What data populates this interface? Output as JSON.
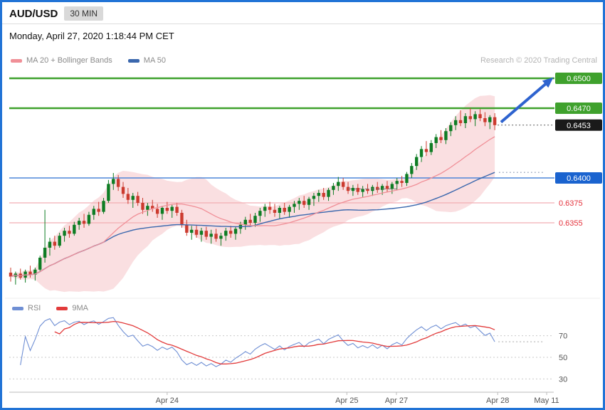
{
  "header": {
    "pair": "AUD/USD",
    "timeframe_badge": "30 MIN"
  },
  "timestamp": "Monday, April 27, 2020 1:18:44 PM CET",
  "legend": {
    "bollinger_label": "MA 20 + Bollinger Bands",
    "ma50_label": "MA 50"
  },
  "attribution": "Research © 2020 Trading Central",
  "rsi_legend": {
    "rsi_label": "RSI",
    "ma_label": "9MA"
  },
  "colors": {
    "frame": "#2173d6",
    "ma20": "#f08f97",
    "bollinger_fill": "#f6c4c9",
    "ma50": "#3a67ad",
    "candle_up": "#0e7d24",
    "candle_down": "#cc3b2f",
    "level_green": "#3fa12d",
    "level_blue_line": "#4f86d8",
    "level_blue_badge": "#1a63cf",
    "level_red_line": "#f2aeb4",
    "level_red_text": "#e4323c",
    "last_price_badge": "#1a1a1a",
    "arrow": "#2e63cf",
    "rsi": "#6f8fd4",
    "rsi_ma": "#e23b3b"
  },
  "chart_data": [
    {
      "type": "candlestick",
      "title": "AUD/USD 30 MIN",
      "ylim": [
        0.629,
        0.6505
      ],
      "last_price": 0.6453,
      "x_labels": [
        {
          "text": "Apr 24",
          "f": 0.29
        },
        {
          "text": "Apr 25",
          "f": 0.62
        },
        {
          "text": "Apr 27",
          "f": 0.711
        },
        {
          "text": "Apr 28",
          "f": 0.897
        },
        {
          "text": "May 11",
          "f": 0.987
        }
      ],
      "levels": [
        {
          "price": 0.65,
          "label": "0.6500",
          "role": "resistance",
          "line_color": "#3fa12d",
          "badge_color": "#3fa12d",
          "label_style": "badge",
          "width": 2.4
        },
        {
          "price": 0.647,
          "label": "0.6470",
          "role": "resistance",
          "line_color": "#3fa12d",
          "badge_color": "#3fa12d",
          "label_style": "badge",
          "width": 2.4
        },
        {
          "price": 0.6453,
          "label": "0.6453",
          "role": "last-price",
          "line_color": "#555555",
          "badge_color": "#1a1a1a",
          "label_style": "badge",
          "width": 1,
          "line": "dotted-short"
        },
        {
          "price": 0.64,
          "label": "0.6400",
          "role": "pivot",
          "line_color": "#4f86d8",
          "badge_color": "#1a63cf",
          "label_style": "badge",
          "width": 1.6
        },
        {
          "price": 0.6375,
          "label": "0.6375",
          "role": "support",
          "line_color": "#f2aeb4",
          "text_color": "#e4323c",
          "label_style": "text",
          "width": 1.2
        },
        {
          "price": 0.6355,
          "label": "0.6355",
          "role": "support",
          "line_color": "#f2aeb4",
          "text_color": "#e4323c",
          "label_style": "text",
          "width": 1.2
        }
      ],
      "overlays": [
        "MA 20",
        "Bollinger Bands (20,2)",
        "MA 50"
      ],
      "annotations": {
        "arrow_up": {
          "from_f": 0.902,
          "from_price": 0.6456,
          "to_f": 0.998,
          "to_price": 0.6501
        },
        "dashed_segment": {
          "price": 0.6389,
          "from": 69,
          "to": 79
        }
      },
      "candles": [
        [
          0.6305,
          0.631,
          0.6296,
          0.6301
        ],
        [
          0.6301,
          0.6306,
          0.6293,
          0.6304
        ],
        [
          0.6304,
          0.6309,
          0.6298,
          0.63
        ],
        [
          0.63,
          0.6308,
          0.6295,
          0.6306
        ],
        [
          0.6306,
          0.6312,
          0.63,
          0.6303
        ],
        [
          0.6303,
          0.631,
          0.6297,
          0.6308
        ],
        [
          0.6308,
          0.6322,
          0.6306,
          0.632
        ],
        [
          0.632,
          0.6368,
          0.6315,
          0.633
        ],
        [
          0.633,
          0.634,
          0.6322,
          0.6336
        ],
        [
          0.6336,
          0.6342,
          0.6328,
          0.6332
        ],
        [
          0.6332,
          0.6345,
          0.633,
          0.6342
        ],
        [
          0.6342,
          0.635,
          0.6336,
          0.6347
        ],
        [
          0.6347,
          0.6352,
          0.634,
          0.6344
        ],
        [
          0.6344,
          0.6356,
          0.6342,
          0.6353
        ],
        [
          0.6353,
          0.636,
          0.6348,
          0.6357
        ],
        [
          0.6357,
          0.6364,
          0.635,
          0.6354
        ],
        [
          0.6354,
          0.6366,
          0.6352,
          0.6363
        ],
        [
          0.6363,
          0.6372,
          0.6358,
          0.6369
        ],
        [
          0.6369,
          0.6376,
          0.6362,
          0.6366
        ],
        [
          0.6366,
          0.638,
          0.6364,
          0.6377
        ],
        [
          0.6377,
          0.6398,
          0.6375,
          0.6394
        ],
        [
          0.6394,
          0.6405,
          0.6388,
          0.6399
        ],
        [
          0.6399,
          0.6403,
          0.6387,
          0.6391
        ],
        [
          0.6391,
          0.6396,
          0.638,
          0.6384
        ],
        [
          0.6384,
          0.639,
          0.6374,
          0.6378
        ],
        [
          0.6378,
          0.6385,
          0.637,
          0.6382
        ],
        [
          0.6382,
          0.6386,
          0.6372,
          0.6375
        ],
        [
          0.6375,
          0.638,
          0.6364,
          0.6368
        ],
        [
          0.6368,
          0.6375,
          0.6362,
          0.6372
        ],
        [
          0.6372,
          0.6378,
          0.6366,
          0.6369
        ],
        [
          0.6369,
          0.6374,
          0.636,
          0.6364
        ],
        [
          0.6364,
          0.6372,
          0.6358,
          0.637
        ],
        [
          0.637,
          0.6376,
          0.6364,
          0.6367
        ],
        [
          0.6367,
          0.6373,
          0.636,
          0.6371
        ],
        [
          0.6371,
          0.6375,
          0.6362,
          0.6365
        ],
        [
          0.6365,
          0.6368,
          0.635,
          0.6353
        ],
        [
          0.6353,
          0.6358,
          0.6342,
          0.6345
        ],
        [
          0.6345,
          0.6352,
          0.6338,
          0.6348
        ],
        [
          0.6348,
          0.6353,
          0.634,
          0.6343
        ],
        [
          0.6343,
          0.635,
          0.6336,
          0.6347
        ],
        [
          0.6347,
          0.6351,
          0.6338,
          0.6341
        ],
        [
          0.6341,
          0.6348,
          0.6334,
          0.6344
        ],
        [
          0.6344,
          0.6349,
          0.6336,
          0.6339
        ],
        [
          0.6339,
          0.6345,
          0.6332,
          0.6342
        ],
        [
          0.6342,
          0.635,
          0.6337,
          0.6347
        ],
        [
          0.6347,
          0.6352,
          0.634,
          0.6344
        ],
        [
          0.6344,
          0.6351,
          0.6338,
          0.6349
        ],
        [
          0.6349,
          0.6356,
          0.6344,
          0.6353
        ],
        [
          0.6353,
          0.6361,
          0.6348,
          0.6358
        ],
        [
          0.6358,
          0.6364,
          0.6352,
          0.6355
        ],
        [
          0.6355,
          0.6365,
          0.6351,
          0.6362
        ],
        [
          0.6362,
          0.637,
          0.6356,
          0.6367
        ],
        [
          0.6367,
          0.6374,
          0.6361,
          0.6371
        ],
        [
          0.6371,
          0.6376,
          0.6364,
          0.6368
        ],
        [
          0.6368,
          0.6374,
          0.6361,
          0.6365
        ],
        [
          0.6365,
          0.6372,
          0.6359,
          0.637
        ],
        [
          0.637,
          0.6375,
          0.6363,
          0.6366
        ],
        [
          0.6366,
          0.6373,
          0.636,
          0.6371
        ],
        [
          0.6371,
          0.6377,
          0.6365,
          0.6374
        ],
        [
          0.6374,
          0.638,
          0.6368,
          0.6377
        ],
        [
          0.6377,
          0.6382,
          0.637,
          0.6373
        ],
        [
          0.6373,
          0.6381,
          0.6368,
          0.6379
        ],
        [
          0.6379,
          0.6385,
          0.6372,
          0.6382
        ],
        [
          0.6382,
          0.6388,
          0.6376,
          0.6385
        ],
        [
          0.6385,
          0.639,
          0.6378,
          0.6381
        ],
        [
          0.6381,
          0.639,
          0.6377,
          0.6388
        ],
        [
          0.6388,
          0.6395,
          0.6383,
          0.6392
        ],
        [
          0.6392,
          0.6401,
          0.6387,
          0.6396
        ],
        [
          0.6396,
          0.64,
          0.6388,
          0.6391
        ],
        [
          0.6391,
          0.6396,
          0.6384,
          0.6387
        ],
        [
          0.6387,
          0.6393,
          0.6382,
          0.639
        ],
        [
          0.639,
          0.6394,
          0.6383,
          0.6386
        ],
        [
          0.6386,
          0.6392,
          0.6381,
          0.6389
        ],
        [
          0.6389,
          0.6394,
          0.6384,
          0.6387
        ],
        [
          0.6387,
          0.6393,
          0.6382,
          0.6391
        ],
        [
          0.6391,
          0.6396,
          0.6385,
          0.6388
        ],
        [
          0.6388,
          0.6394,
          0.6383,
          0.6392
        ],
        [
          0.6392,
          0.6397,
          0.6386,
          0.6389
        ],
        [
          0.6389,
          0.6396,
          0.6384,
          0.6394
        ],
        [
          0.6394,
          0.64,
          0.6388,
          0.6397
        ],
        [
          0.6397,
          0.6402,
          0.6391,
          0.6395
        ],
        [
          0.6395,
          0.6406,
          0.6392,
          0.6404
        ],
        [
          0.6404,
          0.6415,
          0.64,
          0.6412
        ],
        [
          0.6412,
          0.6424,
          0.6408,
          0.6421
        ],
        [
          0.6421,
          0.6432,
          0.6416,
          0.6429
        ],
        [
          0.6429,
          0.6437,
          0.6422,
          0.6426
        ],
        [
          0.6426,
          0.6438,
          0.6423,
          0.6435
        ],
        [
          0.6435,
          0.6444,
          0.643,
          0.6441
        ],
        [
          0.6441,
          0.6448,
          0.6435,
          0.6438
        ],
        [
          0.6438,
          0.645,
          0.6434,
          0.6447
        ],
        [
          0.6447,
          0.6456,
          0.6442,
          0.6453
        ],
        [
          0.6453,
          0.6462,
          0.6448,
          0.6458
        ],
        [
          0.6458,
          0.6468,
          0.6452,
          0.6455
        ],
        [
          0.6455,
          0.6465,
          0.645,
          0.6462
        ],
        [
          0.6462,
          0.647,
          0.6456,
          0.6459
        ],
        [
          0.6459,
          0.6467,
          0.6452,
          0.6464
        ],
        [
          0.6464,
          0.6469,
          0.6457,
          0.646
        ],
        [
          0.646,
          0.6466,
          0.6452,
          0.6456
        ],
        [
          0.6456,
          0.6463,
          0.6449,
          0.6461
        ],
        [
          0.6461,
          0.6465,
          0.6448,
          0.6453
        ]
      ]
    },
    {
      "type": "line",
      "name": "RSI(14) with 9MA",
      "ylim": [
        20,
        90
      ],
      "gridlines": [
        70,
        50,
        30
      ],
      "series": [
        {
          "name": "RSI",
          "color": "#6f8fd4",
          "derived": "RSI(14) of candle closes"
        },
        {
          "name": "9MA",
          "color": "#e23b3b",
          "derived": "9-period SMA of RSI"
        }
      ]
    }
  ]
}
